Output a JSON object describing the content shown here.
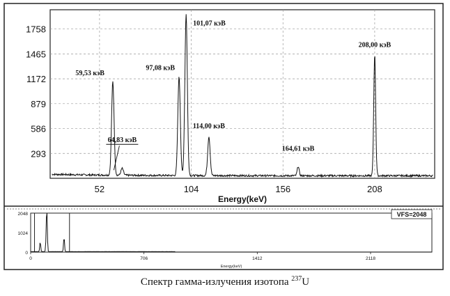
{
  "chart_data": [
    {
      "type": "line",
      "title": "",
      "xlabel": "Energy(keV)",
      "ylabel": "",
      "xlim": [
        24,
        242
      ],
      "ylim": [
        0,
        1985
      ],
      "xticks": [
        52,
        104,
        156,
        208
      ],
      "xtick_labels": [
        "52",
        "104",
        "156",
        "208"
      ],
      "yticks": [
        293,
        586,
        879,
        1172,
        1465,
        1758
      ],
      "ytick_labels": [
        "293",
        "586",
        "879",
        "1172",
        "1465",
        "1758"
      ],
      "grid": true,
      "series": [
        {
          "peaks": [
            {
              "x": 59.53,
              "y": 1100
            },
            {
              "x": 64.83,
              "y": 80
            },
            {
              "x": 97.08,
              "y": 1160
            },
            {
              "x": 101.07,
              "y": 1900
            },
            {
              "x": 114.0,
              "y": 460
            },
            {
              "x": 164.61,
              "y": 110
            },
            {
              "x": 208.0,
              "y": 1430
            }
          ],
          "baseline": 30
        }
      ],
      "annotations": [
        {
          "text": "59,53 кэВ",
          "x": 59.53,
          "y": 1100
        },
        {
          "text": "64,83 кэВ",
          "x": 64.83,
          "y": 80
        },
        {
          "text": "97,08 кэВ",
          "x": 97.08,
          "y": 1160
        },
        {
          "text": "101,07 кэВ",
          "x": 101.07,
          "y": 1900
        },
        {
          "text": "114,00 кэВ",
          "x": 114.0,
          "y": 460
        },
        {
          "text": "164,61 кэВ",
          "x": 164.61,
          "y": 110
        },
        {
          "text": "208,00 кэВ",
          "x": 208.0,
          "y": 1430
        }
      ]
    },
    {
      "type": "line",
      "title": "",
      "xlabel": "Energy(keV)",
      "ylabel": "",
      "xlim": [
        0,
        2500
      ],
      "ylim": [
        0,
        2048
      ],
      "xticks": [
        0,
        706,
        1412,
        2118
      ],
      "xtick_labels": [
        "0",
        "706",
        "1412",
        "2118"
      ],
      "yticks": [
        0,
        1024,
        2048
      ],
      "ytick_labels": [
        "0",
        "1024",
        "2048"
      ],
      "legend": "VFS=2048",
      "zoom_window": [
        24,
        242
      ],
      "series": [
        {
          "peaks": [
            {
              "x": 59.53,
              "y": 520
            },
            {
              "x": 97.08,
              "y": 620
            },
            {
              "x": 101.07,
              "y": 2048
            },
            {
              "x": 208.0,
              "y": 780
            }
          ]
        }
      ]
    }
  ],
  "caption": {
    "text": "Спектр гамма-излучения изотопа ",
    "isotope_mass": "237",
    "element": "U"
  }
}
